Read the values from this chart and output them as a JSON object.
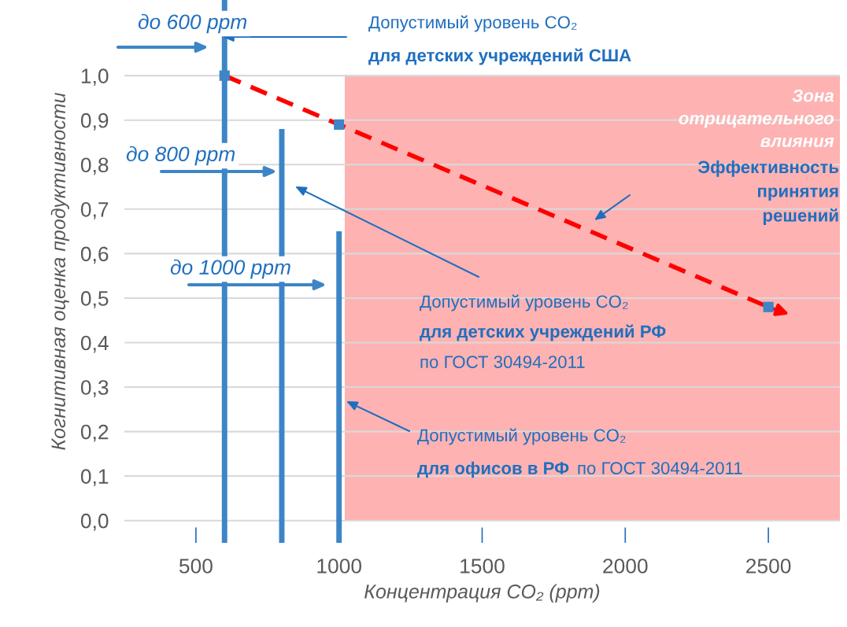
{
  "chart_data": {
    "type": "line",
    "xlabel": "Концентрация CO₂ (ppm)",
    "ylabel": "Когнитивная оценка продуктивности",
    "xlim": [
      250,
      2750
    ],
    "xticks": [
      500,
      1000,
      1500,
      2000,
      2500
    ],
    "ylim": [
      -0.05,
      1.17
    ],
    "yticks": [
      {
        "value": 0,
        "label": "0,0"
      },
      {
        "value": 0.1,
        "label": "0,1"
      },
      {
        "value": 0.2,
        "label": "0,2"
      },
      {
        "value": 0.3,
        "label": "0,3"
      },
      {
        "value": 0.4,
        "label": "0,4"
      },
      {
        "value": 0.5,
        "label": "0,5"
      },
      {
        "value": 0.6,
        "label": "0,6"
      },
      {
        "value": 0.7,
        "label": "0,7"
      },
      {
        "value": 0.8,
        "label": "0,8"
      },
      {
        "value": 0.9,
        "label": "0,9"
      },
      {
        "value": 1.0,
        "label": "1,0"
      }
    ],
    "grid": "y",
    "series": [
      {
        "x": [
          600,
          600
        ],
        "values": [
          -0.05,
          1.17
        ],
        "color": "#3d85c6",
        "marker": "none",
        "line_style": "solid"
      },
      {
        "x": [
          800,
          800
        ],
        "values": [
          -0.05,
          0.88
        ],
        "color": "#3d85c6",
        "marker": "none",
        "line_style": "solid"
      },
      {
        "x": [
          1000,
          1000
        ],
        "values": [
          -0.05,
          0.65
        ],
        "color": "#3d85c6",
        "marker": "none",
        "line_style": "solid"
      },
      {
        "x": [
          600,
          1000,
          2500
        ],
        "values": [
          1.0,
          0.89,
          0.48
        ],
        "color": "#ff0000",
        "marker": "none",
        "line_style": "dashed"
      },
      {
        "type": "scatter",
        "x": [
          600,
          1000,
          2500
        ],
        "values": [
          1.0,
          0.89,
          0.48
        ],
        "color": "#3d85c6",
        "marker": "square"
      }
    ],
    "bands": [
      {
        "axis": "x",
        "from": 1020,
        "to": 2750,
        "color": "#feb2b2",
        "label": "Зона\nотрицательного\nвлияния"
      }
    ],
    "annotations": [
      "до 600 ppm",
      "Допустимый уровень CO₂",
      "для детских учреждений США",
      "до 800 ppm",
      "до 1000 ppm",
      "Допустимый уровень CO₂",
      "для детских учреждений РФ",
      "по ГОСТ 30494-2011",
      "Допустимый уровень CO₂",
      "для офисов в РФ",
      "по ГОСТ 30494-2011",
      "Эффективность\nпринятия\nрешений"
    ]
  }
}
